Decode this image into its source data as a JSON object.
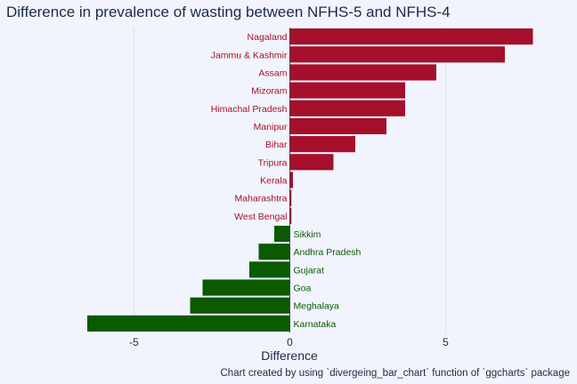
{
  "chart_data": {
    "type": "bar",
    "orientation": "horizontal",
    "title": "Difference in prevalence of wasting between NFHS-5 and NFHS-4",
    "xlabel": "Difference",
    "ylabel": "",
    "caption": "Chart created by using `divergeing_bar_chart` function of `ggcharts` package",
    "xlim": [
      -6.6,
      7.9
    ],
    "xticks": [
      -5,
      0,
      5
    ],
    "colors": {
      "positive": "#A50F2C",
      "negative": "#0B5A00",
      "background": "#F1F4FC",
      "grid": "#DCE1EE"
    },
    "categories": [
      "Nagaland",
      "Jammu & Kashmir",
      "Assam",
      "Mizoram",
      "Himachal Pradesh",
      "Manipur",
      "Bihar",
      "Tripura",
      "Kerala",
      "Maharashtra",
      "West Bengal",
      "Sikkim",
      "Andhra Pradesh",
      "Gujarat",
      "Goa",
      "Meghalaya",
      "Karnataka"
    ],
    "values": [
      7.8,
      6.9,
      4.7,
      3.7,
      3.7,
      3.1,
      2.1,
      1.4,
      0.1,
      0.05,
      0.05,
      -0.5,
      -1.0,
      -1.3,
      -2.8,
      -3.2,
      -6.5
    ]
  }
}
